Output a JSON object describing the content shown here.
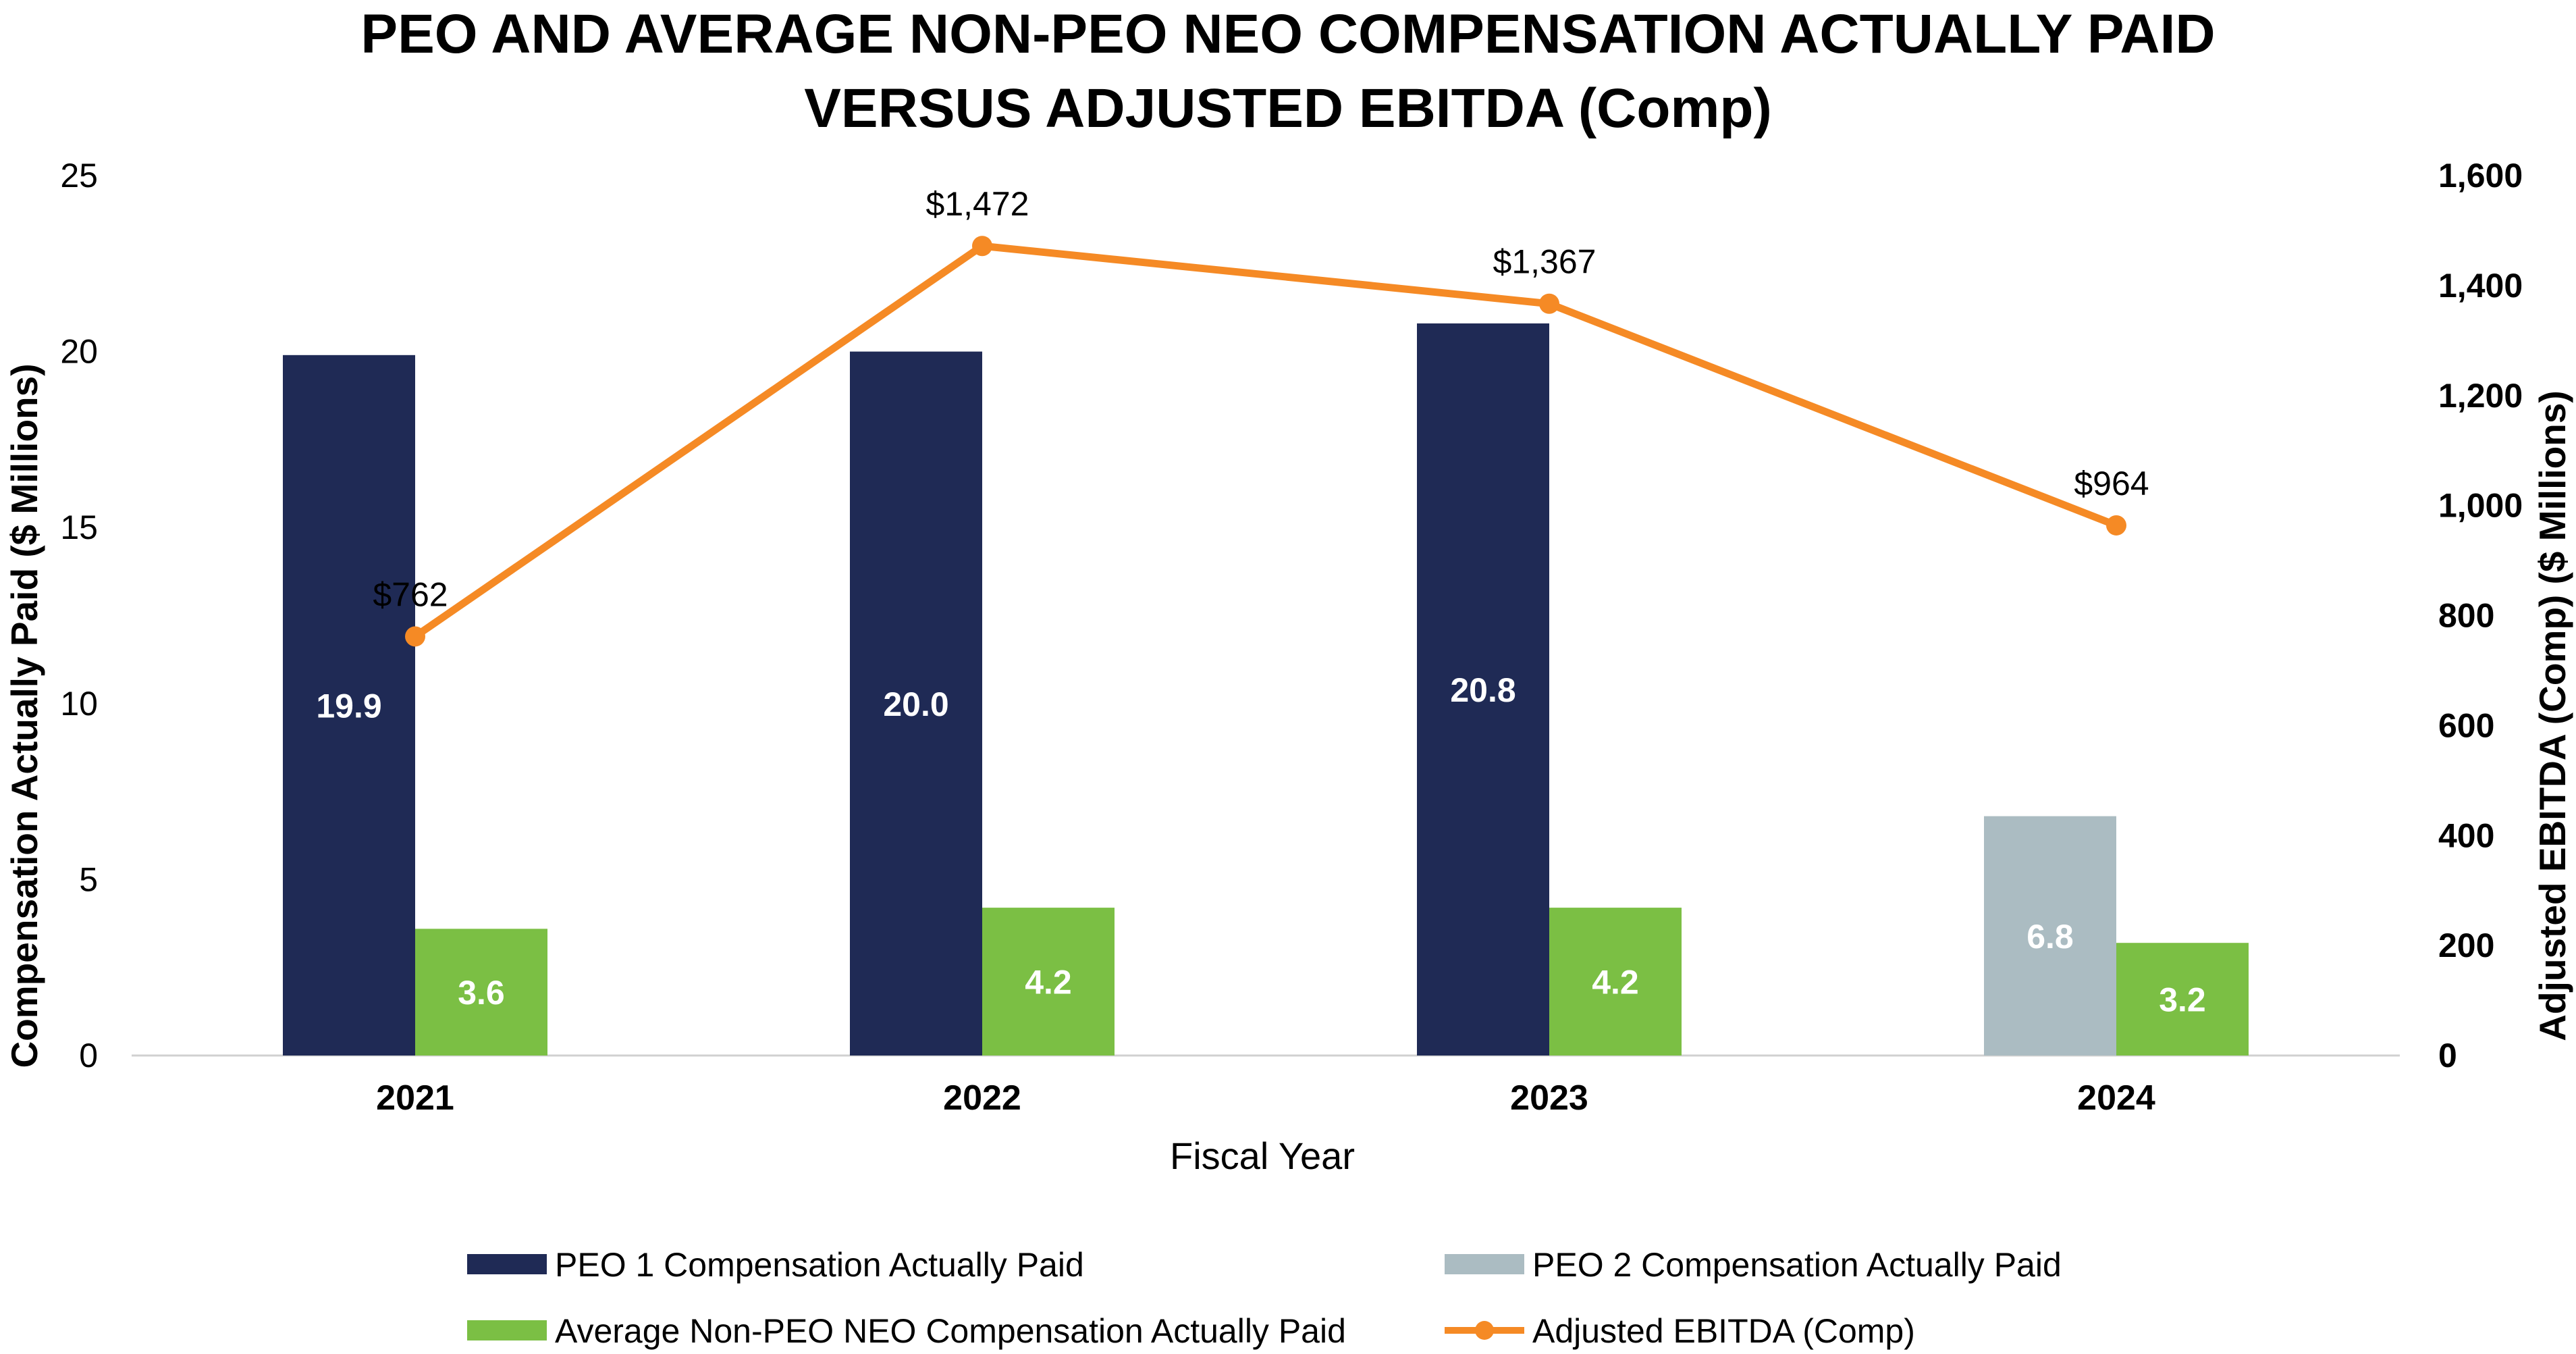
{
  "chart_data": {
    "type": "bar",
    "title_lines": [
      "PEO AND AVERAGE NON-PEO NEO COMPENSATION ACTUALLY PAID",
      "VERSUS ADJUSTED EBITDA (Comp)"
    ],
    "categories": [
      "2021",
      "2022",
      "2023",
      "2024"
    ],
    "xlabel": "Fiscal Year",
    "ylabel": "Compensation Actually Paid ($ Millions)",
    "y2label": "Adjusted EBITDA (Comp) ($ Millions)",
    "ylim": [
      0,
      25
    ],
    "y2lim": [
      0,
      1600
    ],
    "yticks": [
      "0",
      "5",
      "10",
      "15",
      "20",
      "25"
    ],
    "y2ticks": [
      "0",
      "200",
      "400",
      "600",
      "800",
      "1,000",
      "1,200",
      "1,400",
      "1,600"
    ],
    "series": [
      {
        "name": "PEO 1 Compensation Actually Paid",
        "kind": "bar",
        "color": "#1f2a55",
        "values": [
          19.9,
          20.0,
          20.8,
          null
        ],
        "labels": [
          "19.9",
          "20.0",
          "20.8",
          ""
        ]
      },
      {
        "name": "PEO 2 Compensation Actually Paid",
        "kind": "bar",
        "color": "#abbcc2",
        "values": [
          null,
          null,
          null,
          6.8
        ],
        "labels": [
          "",
          "",
          "",
          "6.8"
        ]
      },
      {
        "name": "Average Non-PEO NEO Compensation Actually Paid",
        "kind": "bar",
        "color": "#7bbf44",
        "values": [
          3.6,
          4.2,
          4.2,
          3.2
        ],
        "labels": [
          "3.6",
          "4.2",
          "4.2",
          "3.2"
        ]
      },
      {
        "name": "Adjusted EBITDA (Comp)",
        "kind": "line",
        "axis": "right",
        "color": "#f58a25",
        "values": [
          762,
          1472,
          1367,
          964
        ],
        "labels": [
          "$762",
          "$1,472",
          "$1,367",
          "$964"
        ]
      }
    ],
    "legend_position": "bottom"
  }
}
